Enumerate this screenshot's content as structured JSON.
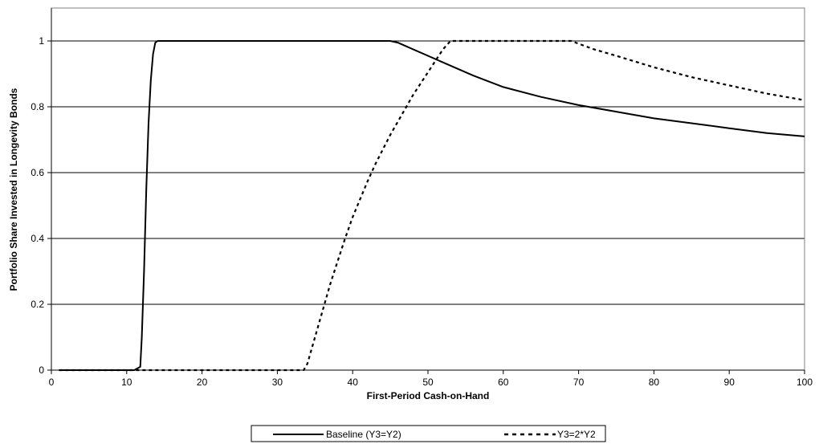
{
  "chart_data": {
    "type": "line",
    "title": "",
    "xlabel": "First-Period Cash-on-Hand",
    "ylabel": "Portfolio Share Invested in Longevity Bonds",
    "xlim": [
      0,
      100
    ],
    "ylim": [
      0,
      1.1
    ],
    "x_ticks": [
      "0",
      "10",
      "20",
      "30",
      "40",
      "50",
      "60",
      "70",
      "80",
      "90",
      "100"
    ],
    "y_ticks": [
      "0",
      "0.2",
      "0.4",
      "0.6",
      "0.8",
      "1"
    ],
    "grid": "horizontal major gridlines",
    "legend_position": "bottom",
    "series": [
      {
        "name": "Baseline (Y3=Y2)",
        "style": "solid",
        "color": "#000000",
        "x": [
          1,
          11,
          11.8,
          12,
          12.3,
          12.6,
          12.9,
          13.2,
          13.5,
          13.8,
          14.1,
          20,
          30,
          40,
          45,
          46,
          48,
          50,
          53,
          56,
          60,
          65,
          70,
          75,
          80,
          85,
          90,
          95,
          100
        ],
        "y": [
          0,
          0,
          0.01,
          0.1,
          0.3,
          0.55,
          0.75,
          0.88,
          0.96,
          0.995,
          1,
          1,
          1,
          1,
          1,
          0.995,
          0.975,
          0.955,
          0.925,
          0.895,
          0.86,
          0.83,
          0.805,
          0.785,
          0.765,
          0.75,
          0.735,
          0.72,
          0.71
        ]
      },
      {
        "name": "Y3=2*Y2",
        "style": "dashed",
        "color": "#000000",
        "x": [
          1,
          33.5,
          34,
          35,
          36,
          37,
          38,
          39,
          40,
          41,
          42,
          43,
          44,
          45,
          46,
          47,
          48,
          49,
          50,
          51,
          52,
          53,
          60,
          65,
          69,
          72,
          75,
          80,
          85,
          90,
          95,
          100
        ],
        "y": [
          0,
          0,
          0.02,
          0.1,
          0.18,
          0.26,
          0.33,
          0.4,
          0.465,
          0.52,
          0.575,
          0.625,
          0.67,
          0.715,
          0.755,
          0.795,
          0.835,
          0.87,
          0.905,
          0.94,
          0.975,
          1,
          1,
          1,
          1,
          0.975,
          0.955,
          0.92,
          0.89,
          0.865,
          0.84,
          0.82
        ]
      }
    ]
  }
}
